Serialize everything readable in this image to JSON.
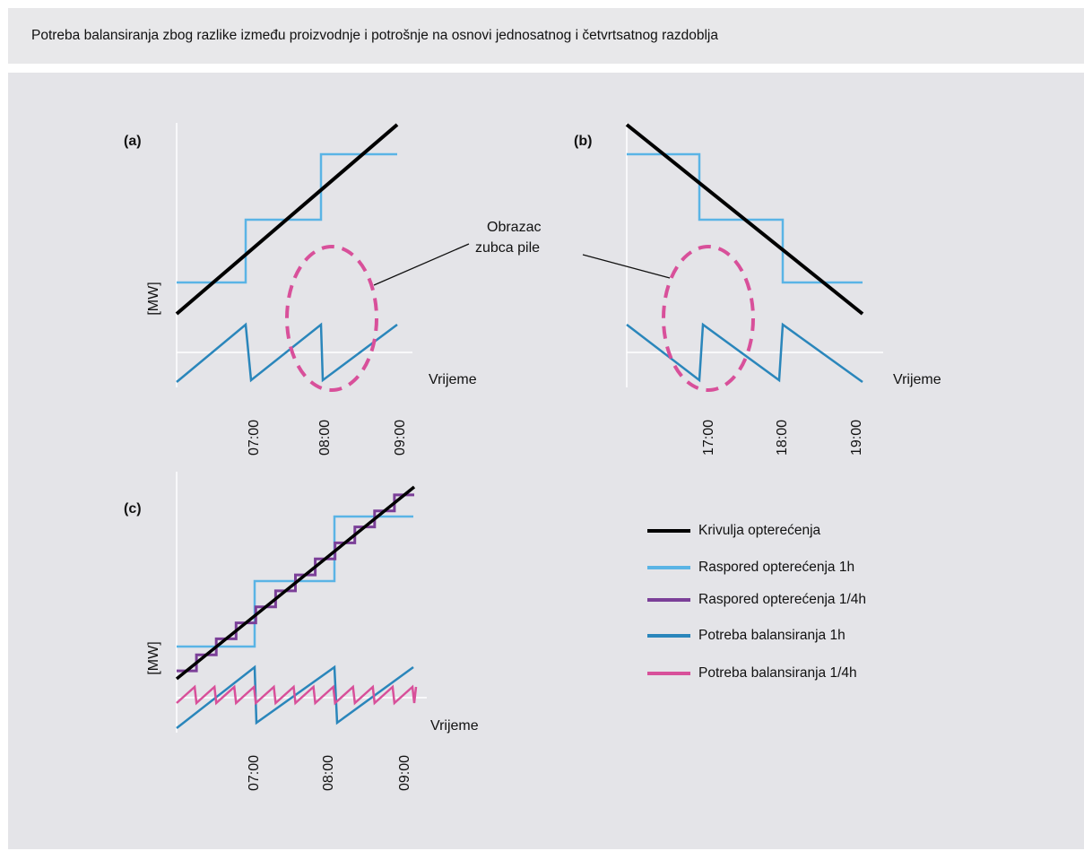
{
  "header": {
    "title": "Potreba balansiranja zbog razlike između proizvodnje i potrošnje na osnovi jednosatnog i četvrtsatnog razdoblja"
  },
  "colors": {
    "panel_bg": "#e4e4e8",
    "load_curve": "#000000",
    "schedule_1h": "#5ab4e5",
    "schedule_quarter": "#7b3f98",
    "balancing_1h": "#2a86bb",
    "balancing_quarter": "#d8509a"
  },
  "annotation": {
    "line1": "Obrazac",
    "line2": "zubca pile"
  },
  "legend": [
    {
      "label": "Krivulja opterećenja",
      "color": "#000000"
    },
    {
      "label": "Raspored opterećenja 1h",
      "color": "#5ab4e5"
    },
    {
      "label": "Raspored opterećenja 1/4h",
      "color": "#7b3f98"
    },
    {
      "label": "Potreba balansiranja 1h",
      "color": "#2a86bb"
    },
    {
      "label": "Potreba balansiranja 1/4h",
      "color": "#d8509a"
    }
  ],
  "chart_data": [
    {
      "type": "line",
      "panel": "(a)",
      "ylabel": "[MW]",
      "xlabel": "Vrijeme",
      "x_ticks": [
        "07:00",
        "08:00",
        "09:00"
      ],
      "series": [
        {
          "name": "Krivulja opterećenja",
          "shape": "rising linear"
        },
        {
          "name": "Raspored opterećenja 1h",
          "shape": "rising hourly steps"
        },
        {
          "name": "Potreba balansiranja 1h",
          "shape": "hourly sawtooth"
        }
      ]
    },
    {
      "type": "line",
      "panel": "(b)",
      "ylabel": "",
      "xlabel": "Vrijeme",
      "x_ticks": [
        "17:00",
        "18:00",
        "19:00"
      ],
      "series": [
        {
          "name": "Krivulja opterećenja",
          "shape": "falling linear"
        },
        {
          "name": "Raspored opterećenja 1h",
          "shape": "falling hourly steps"
        },
        {
          "name": "Potreba balansiranja 1h",
          "shape": "hourly sawtooth"
        }
      ]
    },
    {
      "type": "line",
      "panel": "(c)",
      "ylabel": "[MW]",
      "xlabel": "Vrijeme",
      "x_ticks": [
        "07:00",
        "08:00",
        "09:00"
      ],
      "series": [
        {
          "name": "Krivulja opterećenja",
          "shape": "rising linear"
        },
        {
          "name": "Raspored opterećenja 1h",
          "shape": "rising hourly steps"
        },
        {
          "name": "Raspored opterećenja 1/4h",
          "shape": "rising quarter-hour steps"
        },
        {
          "name": "Potreba balansiranja 1h",
          "shape": "hourly sawtooth"
        },
        {
          "name": "Potreba balansiranja 1/4h",
          "shape": "quarter-hour sawtooth"
        }
      ]
    }
  ]
}
